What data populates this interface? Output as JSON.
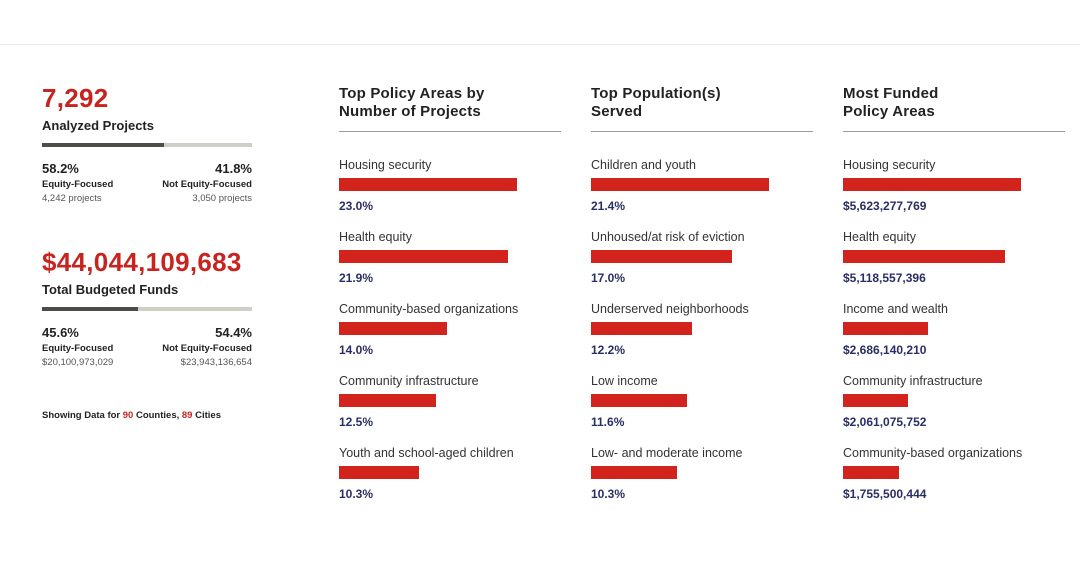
{
  "summary": {
    "projects": {
      "total": "7,292",
      "label": "Analyzed Projects",
      "equity_share": 58.2,
      "left": {
        "pct": "58.2%",
        "cat": "Equity-Focused",
        "sub": "4,242 projects"
      },
      "right": {
        "pct": "41.8%",
        "cat": "Not Equity-Focused",
        "sub": "3,050 projects"
      }
    },
    "funds": {
      "total": "$44,044,109,683",
      "label": "Total Budgeted Funds",
      "equity_share": 45.6,
      "left": {
        "pct": "45.6%",
        "cat": "Equity-Focused",
        "sub": "$20,100,973,029"
      },
      "right": {
        "pct": "54.4%",
        "cat": "Not Equity-Focused",
        "sub": "$23,943,136,654"
      }
    },
    "footnote": {
      "prefix": "Showing Data for ",
      "counties": "90",
      "counties_label": " Counties, ",
      "cities": "89",
      "cities_label": " Cities"
    },
    "colors": {
      "accent": "#c8241f",
      "split_dark": "#4d4d47",
      "split_light": "#cfcfc6"
    }
  },
  "chart_data": [
    {
      "type": "bar",
      "title": "Top Policy Areas by Number of Projects",
      "title_lines": [
        "Top Policy Areas by",
        "Number of Projects"
      ],
      "categories": [
        "Housing security",
        "Health equity",
        "Community-based organizations",
        "Community infrastructure",
        "Youth and school-aged children"
      ],
      "values": [
        23.0,
        21.9,
        14.0,
        12.5,
        10.3
      ],
      "value_labels": [
        "23.0%",
        "21.9%",
        "14.0%",
        "12.5%",
        "10.3%"
      ],
      "bar_color": "#d2231c"
    },
    {
      "type": "bar",
      "title": "Top Population(s) Served",
      "title_lines": [
        "Top Population(s)",
        "Served"
      ],
      "categories": [
        "Children and youth",
        "Unhoused/at risk of eviction",
        "Underserved neighborhoods",
        "Low income",
        "Low- and moderate income"
      ],
      "values": [
        21.4,
        17.0,
        12.2,
        11.6,
        10.3
      ],
      "value_labels": [
        "21.4%",
        "17.0%",
        "12.2%",
        "11.6%",
        "10.3%"
      ],
      "bar_color": "#d2231c"
    },
    {
      "type": "bar",
      "title": "Most Funded Policy Areas",
      "title_lines": [
        "Most Funded",
        "Policy Areas"
      ],
      "categories": [
        "Housing security",
        "Health equity",
        "Income and wealth",
        "Community infrastructure",
        "Community-based organizations"
      ],
      "values": [
        5623277769,
        5118557396,
        2686140210,
        2061075752,
        1755500444
      ],
      "value_labels": [
        "$5,623,277,769",
        "$5,118,557,396",
        "$2,686,140,210",
        "$2,061,075,752",
        "$1,755,500,444"
      ],
      "bar_color": "#d2231c"
    }
  ]
}
